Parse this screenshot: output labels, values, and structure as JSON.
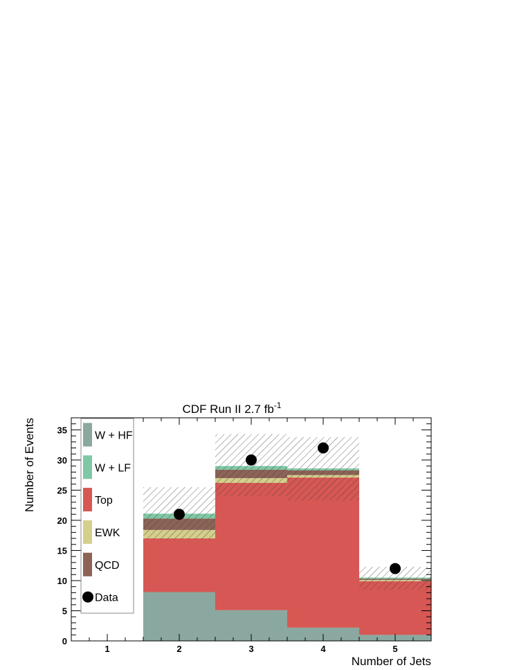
{
  "chart_data": {
    "type": "bar",
    "stacked": true,
    "title": "CDF Run II 2.7 fb",
    "title_sup": "-1",
    "xlabel": "Number of Jets",
    "ylabel": "Number of Events",
    "categories": [
      "1",
      "2",
      "3",
      "4",
      "5"
    ],
    "ylim": [
      0,
      37
    ],
    "yticks": [
      "0",
      "5",
      "10",
      "15",
      "20",
      "25",
      "30",
      "35"
    ],
    "series": [
      {
        "name": "W + HF",
        "color": "#8aa89f",
        "values": [
          0,
          8.1,
          5.1,
          2.2,
          1.0
        ]
      },
      {
        "name": "Top",
        "color": "#d65753",
        "values": [
          0,
          8.9,
          21.1,
          24.9,
          8.9
        ]
      },
      {
        "name": "EWK",
        "color": "#d5cf8c",
        "values": [
          0,
          1.4,
          0.8,
          0.4,
          0.2
        ]
      },
      {
        "name": "QCD",
        "color": "#8c6356",
        "values": [
          0,
          1.9,
          1.4,
          0.8,
          0.2
        ]
      },
      {
        "name": "W + LF",
        "color": "#7fc8a5",
        "values": [
          0,
          0.8,
          0.6,
          0.3,
          0.2
        ]
      }
    ],
    "uncertainty_band": {
      "low": [
        0,
        16.8,
        24.0,
        23.3,
        8.5
      ],
      "high": [
        0,
        25.5,
        34.3,
        33.8,
        12.3
      ]
    },
    "data_points": {
      "name": "Data",
      "values": [
        null,
        21,
        30,
        32,
        12
      ]
    },
    "legend": {
      "placement": "top-left",
      "entries": [
        {
          "label": "W + HF",
          "color": "#8aa89f",
          "marker": "box"
        },
        {
          "label": "W + LF",
          "color": "#7fc8a5",
          "marker": "box"
        },
        {
          "label": "Top",
          "color": "#d65753",
          "marker": "box"
        },
        {
          "label": "EWK",
          "color": "#d5cf8c",
          "marker": "box"
        },
        {
          "label": "QCD",
          "color": "#8c6356",
          "marker": "box"
        },
        {
          "label": "Data",
          "color": "#000000",
          "marker": "circle"
        }
      ]
    },
    "grid": false
  }
}
